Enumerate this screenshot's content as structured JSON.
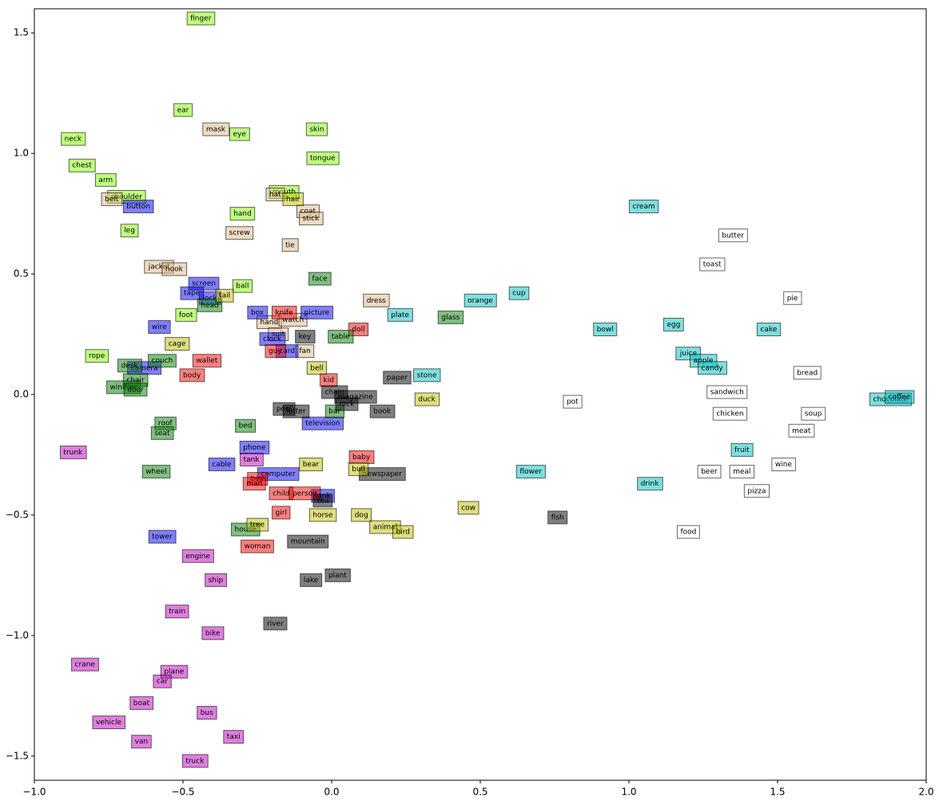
{
  "chart_data": {
    "type": "scatter",
    "xlim": [
      -1.0,
      2.0
    ],
    "ylim": [
      -1.6,
      1.6
    ],
    "xticks": [
      {
        "value": -1.0,
        "label": "−1.0"
      },
      {
        "value": -0.5,
        "label": "−0.5"
      },
      {
        "value": 0.0,
        "label": "0.0"
      },
      {
        "value": 0.5,
        "label": "0.5"
      },
      {
        "value": 1.0,
        "label": "1.0"
      },
      {
        "value": 1.5,
        "label": "1.5"
      },
      {
        "value": 2.0,
        "label": "2.0"
      }
    ],
    "yticks": [
      {
        "value": -1.5,
        "label": "−1.5"
      },
      {
        "value": -1.0,
        "label": "−1.0"
      },
      {
        "value": -0.5,
        "label": "−0.5"
      },
      {
        "value": 0.0,
        "label": "0.0"
      },
      {
        "value": 0.5,
        "label": "0.5"
      },
      {
        "value": 1.0,
        "label": "1.0"
      },
      {
        "value": 1.5,
        "label": "1.5"
      }
    ],
    "series": [
      {
        "color": "#7fff00",
        "labels": [
          "finger",
          "ear",
          "neck",
          "chest",
          "arm",
          "shoulder",
          "leg",
          "eye",
          "skin",
          "tongue",
          "mouth",
          "hand",
          "ball",
          "foot",
          "rope"
        ],
        "x": [
          -0.44,
          -0.5,
          -0.87,
          -0.84,
          -0.76,
          -0.69,
          -0.68,
          -0.31,
          -0.05,
          -0.03,
          -0.16,
          -0.3,
          -0.3,
          -0.49,
          -0.79
        ],
        "y": [
          1.56,
          1.18,
          1.06,
          0.95,
          0.89,
          0.82,
          0.68,
          1.08,
          1.1,
          0.98,
          0.84,
          0.75,
          0.45,
          0.33,
          0.16
        ]
      },
      {
        "color": "#deb887",
        "labels": [
          "mask",
          "belt",
          "jacket",
          "hook",
          "hat",
          "coat",
          "stick",
          "screw",
          "tie",
          "dress",
          "hand",
          "watch",
          "suit",
          "fan"
        ],
        "x": [
          -0.39,
          -0.74,
          -0.58,
          -0.53,
          -0.19,
          -0.08,
          -0.07,
          -0.31,
          -0.14,
          0.15,
          -0.21,
          -0.13,
          -0.18,
          -0.09
        ],
        "y": [
          1.1,
          0.81,
          0.53,
          0.52,
          0.83,
          0.76,
          0.73,
          0.67,
          0.62,
          0.39,
          0.3,
          0.31,
          0.25,
          0.18
        ]
      },
      {
        "color": "#0000ff",
        "labels": [
          "button",
          "screen",
          "tape",
          "lock",
          "wire",
          "camera",
          "box",
          "picture",
          "clock",
          "card",
          "phone",
          "cable",
          "computer",
          "television",
          "tank",
          "tower"
        ],
        "x": [
          -0.65,
          -0.43,
          -0.47,
          -0.41,
          -0.58,
          -0.63,
          -0.25,
          -0.05,
          -0.2,
          -0.15,
          -0.26,
          -0.37,
          -0.18,
          -0.03,
          -0.03,
          -0.57
        ],
        "y": [
          0.78,
          0.46,
          0.42,
          0.4,
          0.28,
          0.11,
          0.34,
          0.34,
          0.23,
          0.18,
          -0.22,
          -0.29,
          -0.33,
          -0.12,
          -0.42,
          -0.59
        ]
      },
      {
        "color": "#ff0000",
        "labels": [
          "knife",
          "guy",
          "wallet",
          "body",
          "doll",
          "kid",
          "baby",
          "boy",
          "man",
          "child",
          "person",
          "girl",
          "woman"
        ],
        "x": [
          -0.16,
          -0.19,
          -0.42,
          -0.47,
          0.09,
          -0.01,
          0.1,
          -0.25,
          -0.26,
          -0.17,
          -0.09,
          -0.17,
          -0.25
        ],
        "y": [
          0.34,
          0.18,
          0.14,
          0.08,
          0.27,
          0.06,
          -0.26,
          -0.35,
          -0.37,
          -0.41,
          -0.41,
          -0.49,
          -0.63
        ]
      },
      {
        "color": "#008000",
        "labels": [
          "face",
          "glass",
          "table",
          "couch",
          "desk",
          "chair",
          "window",
          "door",
          "head",
          "bed",
          "bar",
          "roof",
          "seat",
          "wheel",
          "house"
        ],
        "x": [
          -0.04,
          0.4,
          0.03,
          -0.57,
          -0.68,
          -0.66,
          -0.7,
          -0.66,
          -0.41,
          -0.29,
          0.01,
          -0.56,
          -0.57,
          -0.59,
          -0.29
        ],
        "y": [
          0.48,
          0.32,
          0.24,
          0.14,
          0.12,
          0.06,
          0.03,
          0.02,
          0.37,
          -0.13,
          -0.07,
          -0.12,
          -0.16,
          -0.32,
          -0.56
        ]
      },
      {
        "color": "#000000",
        "labels": [
          "key",
          "chain",
          "magazine",
          "rock",
          "paper",
          "book",
          "pool",
          "letter",
          "newspaper",
          "sea",
          "mountain",
          "plant",
          "lake",
          "river",
          "fish"
        ],
        "x": [
          -0.09,
          0.01,
          0.08,
          0.05,
          0.22,
          0.17,
          -0.16,
          -0.12,
          0.17,
          -0.03,
          -0.08,
          0.02,
          -0.07,
          -0.19,
          0.76
        ],
        "y": [
          0.24,
          0.01,
          -0.01,
          -0.04,
          0.07,
          -0.07,
          -0.06,
          -0.07,
          -0.33,
          -0.44,
          -0.61,
          -0.75,
          -0.77,
          -0.95,
          -0.51
        ]
      },
      {
        "color": "#bfbf00",
        "labels": [
          "tail",
          "cage",
          "bell",
          "duck",
          "bear",
          "bull",
          "horse",
          "dog",
          "animal",
          "bird",
          "cow",
          "tree",
          "hair"
        ],
        "x": [
          -0.36,
          -0.52,
          -0.05,
          0.32,
          -0.07,
          0.09,
          -0.03,
          0.1,
          0.18,
          0.24,
          0.46,
          -0.25,
          -0.13
        ],
        "y": [
          0.41,
          0.21,
          0.11,
          -0.02,
          -0.29,
          -0.31,
          -0.5,
          -0.5,
          -0.55,
          -0.57,
          -0.47,
          -0.54,
          0.81
        ]
      },
      {
        "color": "#00bfbf",
        "labels": [
          "cream",
          "cup",
          "orange",
          "plate",
          "bowl",
          "egg",
          "cake",
          "juice",
          "apple",
          "candy",
          "stone",
          "chocolate",
          "coffee",
          "fruit",
          "flower",
          "drink"
        ],
        "x": [
          1.05,
          0.63,
          0.5,
          0.23,
          0.92,
          1.15,
          1.47,
          1.2,
          1.25,
          1.28,
          0.32,
          1.88,
          1.91,
          1.38,
          0.67,
          1.07
        ],
        "y": [
          0.78,
          0.42,
          0.39,
          0.33,
          0.27,
          0.29,
          0.27,
          0.17,
          0.14,
          0.11,
          0.08,
          -0.02,
          -0.01,
          -0.23,
          -0.32,
          -0.37
        ]
      },
      {
        "color": "#bf00bf",
        "labels": [
          "trunk",
          "tank",
          "engine",
          "ship",
          "train",
          "bike",
          "crane",
          "plane",
          "car",
          "boat",
          "bus",
          "vehicle",
          "taxi",
          "van",
          "truck"
        ],
        "x": [
          -0.87,
          -0.27,
          -0.45,
          -0.39,
          -0.52,
          -0.4,
          -0.83,
          -0.53,
          -0.57,
          -0.64,
          -0.42,
          -0.75,
          -0.33,
          -0.64,
          -0.46
        ],
        "y": [
          -0.24,
          -0.27,
          -0.67,
          -0.77,
          -0.9,
          -0.99,
          -1.12,
          -1.15,
          -1.19,
          -1.28,
          -1.32,
          -1.36,
          -1.42,
          -1.44,
          -1.52
        ]
      },
      {
        "color": "#ffffff",
        "labels": [
          "butter",
          "toast",
          "pie",
          "bread",
          "sandwich",
          "chicken",
          "soup",
          "meat",
          "pot",
          "wine",
          "beer",
          "meal",
          "pizza",
          "food"
        ],
        "x": [
          1.35,
          1.28,
          1.55,
          1.6,
          1.33,
          1.34,
          1.62,
          1.58,
          0.81,
          1.52,
          1.27,
          1.38,
          1.43,
          1.2
        ],
        "y": [
          0.66,
          0.54,
          0.4,
          0.09,
          0.01,
          -0.08,
          -0.08,
          -0.15,
          -0.03,
          -0.29,
          -0.32,
          -0.32,
          -0.4,
          -0.57
        ]
      }
    ]
  }
}
